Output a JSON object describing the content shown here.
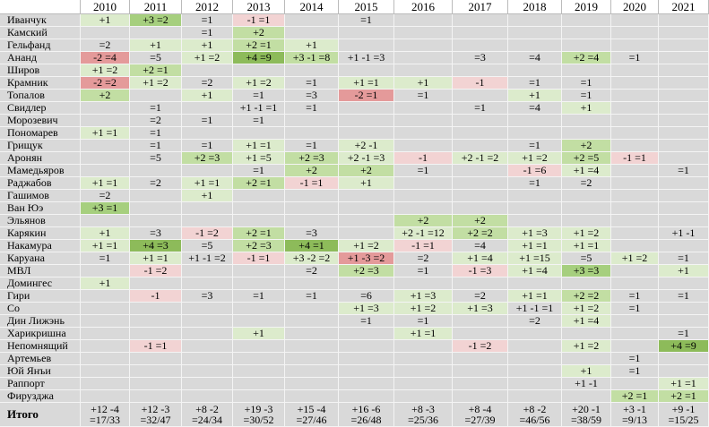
{
  "table": {
    "columns": [
      "2010",
      "2011",
      "2012",
      "2013",
      "2014",
      "2015",
      "2016",
      "2017",
      "2018",
      "2019",
      "2020",
      "2021"
    ],
    "rows": [
      {
        "name": "Иванчук",
        "cells": [
          "+1",
          "+3 =2",
          "=1",
          "-1 =1",
          null,
          "=1",
          null,
          null,
          null,
          null,
          null,
          null
        ]
      },
      {
        "name": "Камский",
        "cells": [
          null,
          null,
          "=1",
          "+2",
          null,
          null,
          null,
          null,
          null,
          null,
          null,
          null
        ]
      },
      {
        "name": "Гельфанд",
        "cells": [
          "=2",
          "+1",
          "+1",
          "+2 =1",
          "+1",
          null,
          null,
          null,
          null,
          null,
          null,
          null
        ]
      },
      {
        "name": "Ананд",
        "cells": [
          "-2 =4",
          "=5",
          "+1 =2",
          "+4 =9",
          "+3 -1 =8",
          "+1 -1 =3",
          null,
          "=3",
          "=4",
          "+2 =4",
          "=1",
          null
        ]
      },
      {
        "name": "Широв",
        "cells": [
          "+1 =2",
          "+2 =1",
          null,
          null,
          null,
          null,
          null,
          null,
          null,
          null,
          null,
          null
        ]
      },
      {
        "name": "Крамник",
        "cells": [
          "-2 =2",
          "+1 =2",
          "=2",
          "+1 =2",
          "=1",
          "+1 =1",
          "+1",
          "-1",
          "=1",
          "=1",
          null,
          null
        ]
      },
      {
        "name": "Топалов",
        "cells": [
          "+2",
          null,
          "+1",
          "=1",
          "=3",
          "-2 =1",
          "=1",
          null,
          "+1",
          "=1",
          null,
          null
        ]
      },
      {
        "name": "Свидлер",
        "cells": [
          null,
          "=1",
          null,
          "+1 -1 =1",
          "=1",
          null,
          null,
          "=1",
          "=4",
          "+1",
          null,
          null
        ]
      },
      {
        "name": "Морозевич",
        "cells": [
          null,
          "=2",
          "=1",
          "=1",
          null,
          null,
          null,
          null,
          null,
          null,
          null,
          null
        ]
      },
      {
        "name": "Пономарев",
        "cells": [
          "+1 =1",
          "=1",
          null,
          null,
          null,
          null,
          null,
          null,
          null,
          null,
          null,
          null
        ]
      },
      {
        "name": "Грищук",
        "cells": [
          null,
          "=1",
          "=1",
          "+1 =1",
          "=1",
          "+2 -1",
          null,
          null,
          "=1",
          "+2",
          null,
          null
        ]
      },
      {
        "name": "Аронян",
        "cells": [
          null,
          "=5",
          "+2 =3",
          "+1 =5",
          "+2 =3",
          "+2 -1 =3",
          "-1",
          "+2 -1 =2",
          "+1 =2",
          "+2 =5",
          "-1 =1",
          null
        ]
      },
      {
        "name": "Мамедьяров",
        "cells": [
          null,
          null,
          null,
          "=1",
          "+2",
          "+2",
          "=1",
          null,
          "-1 =6",
          "+1 =4",
          null,
          "=1"
        ]
      },
      {
        "name": "Раджабов",
        "cells": [
          "+1 =1",
          "=2",
          "+1 =1",
          "+2 =1",
          "-1 =1",
          "+1",
          null,
          null,
          "=1",
          "=2",
          null,
          null
        ]
      },
      {
        "name": "Гашимов",
        "cells": [
          "=2",
          null,
          "+1",
          null,
          null,
          null,
          null,
          null,
          null,
          null,
          null,
          null
        ]
      },
      {
        "name": "Ван Юэ",
        "cells": [
          "+3 =1",
          null,
          null,
          null,
          null,
          null,
          null,
          null,
          null,
          null,
          null,
          null
        ]
      },
      {
        "name": "Эльянов",
        "cells": [
          null,
          null,
          null,
          null,
          null,
          null,
          "+2",
          "+2",
          null,
          null,
          null,
          null
        ]
      },
      {
        "name": "Карякин",
        "cells": [
          "+1",
          "=3",
          "-1 =2",
          "+2 =1",
          "=3",
          null,
          "+2 -1 =12",
          "+2 =2",
          "+1 =3",
          "+1 =2",
          null,
          "+1 -1"
        ]
      },
      {
        "name": "Накамура",
        "cells": [
          "+1 =1",
          "+4 =3",
          "=5",
          "+2 =3",
          "+4 =1",
          "+1 =2",
          "-1 =1",
          "=4",
          "+1 =1",
          "+1 =1",
          null,
          null
        ]
      },
      {
        "name": "Каруана",
        "cells": [
          "=1",
          "+1 =1",
          "+1 -1 =2",
          "-1 =1",
          "+3 -2 =2",
          "+1 -3 =2",
          "=2",
          "+1 =4",
          "+1 =15",
          "=5",
          "+1 =2",
          "=1"
        ]
      },
      {
        "name": "МВЛ",
        "cells": [
          null,
          "-1 =2",
          null,
          null,
          "=2",
          "+2 =3",
          "=1",
          "-1 =3",
          "+1 =4",
          "+3 =3",
          null,
          "+1"
        ]
      },
      {
        "name": "Домингес",
        "cells": [
          "+1",
          null,
          null,
          null,
          null,
          null,
          null,
          null,
          null,
          null,
          null,
          null
        ]
      },
      {
        "name": "Гири",
        "cells": [
          null,
          "-1",
          "=3",
          "=1",
          "=1",
          "=6",
          "+1 =3",
          "=2",
          "+1 =1",
          "+2 =2",
          "=1",
          "=1"
        ]
      },
      {
        "name": "Со",
        "cells": [
          null,
          null,
          null,
          null,
          null,
          "+1 =3",
          "+1 =2",
          "+1 =3",
          "+1 -1 =1",
          "+1 =2",
          "=1",
          null
        ]
      },
      {
        "name": "Дин Лижэнь",
        "cells": [
          null,
          null,
          null,
          null,
          null,
          "=1",
          "=1",
          null,
          "=2",
          "+1 =4",
          null,
          null
        ]
      },
      {
        "name": "Харикришна",
        "cells": [
          null,
          null,
          null,
          "+1",
          null,
          null,
          "+1 =1",
          null,
          null,
          null,
          null,
          "=1"
        ]
      },
      {
        "name": "Непомнящий",
        "cells": [
          null,
          "-1 =1",
          null,
          null,
          null,
          null,
          null,
          "-1 =2",
          null,
          "+1 =2",
          null,
          "+4 =9"
        ]
      },
      {
        "name": "Артемьев",
        "cells": [
          null,
          null,
          null,
          null,
          null,
          null,
          null,
          null,
          null,
          null,
          "=1",
          null
        ]
      },
      {
        "name": "Юй Янъи",
        "cells": [
          null,
          null,
          null,
          null,
          null,
          null,
          null,
          null,
          null,
          "+1",
          "=1",
          null
        ]
      },
      {
        "name": "Раппорт",
        "cells": [
          null,
          null,
          null,
          null,
          null,
          null,
          null,
          null,
          null,
          "+1 -1",
          null,
          "+1 =1"
        ]
      },
      {
        "name": "Фирузджа",
        "cells": [
          null,
          null,
          null,
          null,
          null,
          null,
          null,
          null,
          null,
          null,
          "+2 =1",
          "+2 =1"
        ]
      }
    ],
    "total": {
      "name": "Итого",
      "cells": [
        "+12 -4\n=17/33",
        "+12 -3\n=32/47",
        "+8 -2\n=24/34",
        "+19 -3\n=30/52",
        "+15 -4\n=27/46",
        "+16 -6\n=26/48",
        "+8 -3\n=25/36",
        "+8 -4\n=27/39",
        "+8 -2\n=46/56",
        "+20 -1\n=38/59",
        "+3 -1\n=9/13",
        "+9 -1\n=15/25"
      ]
    }
  }
}
